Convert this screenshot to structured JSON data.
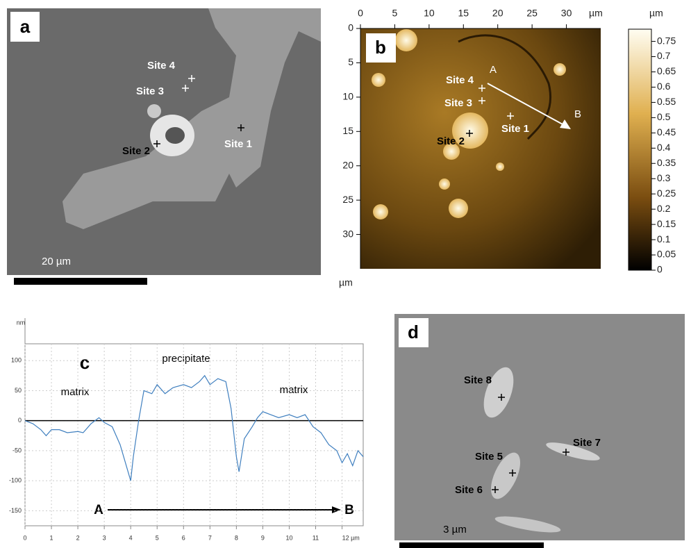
{
  "panels": {
    "a": {
      "label": "a",
      "sites": [
        "Site 4",
        "Site 3",
        "Site 2",
        "Site 1"
      ],
      "scale_bar": "20 µm"
    },
    "b": {
      "label": "b",
      "sites": [
        "Site 4",
        "Site 3",
        "Site 2",
        "Site 1"
      ],
      "profile_ends": [
        "A",
        "B"
      ],
      "xlim": [
        0,
        35
      ],
      "xticks": [
        0,
        5,
        10,
        15,
        20,
        25,
        30
      ],
      "x_unit": "µm",
      "ylim": [
        0,
        35
      ],
      "yticks": [
        0,
        5,
        10,
        15,
        20,
        25,
        30
      ],
      "y_unit": "µm",
      "colorbar": {
        "unit": "µm",
        "lim": [
          0,
          0.79
        ],
        "ticks": [
          0.75,
          0.7,
          0.65,
          0.6,
          0.55,
          0.5,
          0.45,
          0.4,
          0.35,
          0.3,
          0.25,
          0.2,
          0.15,
          0.1,
          0.05,
          0
        ]
      }
    },
    "d": {
      "label": "d",
      "sites": [
        "Site 8",
        "Site 7",
        "Site 5",
        "Site 6"
      ],
      "scale_bar": "3 µm"
    }
  },
  "chart_data": {
    "type": "line",
    "label": "c",
    "y_unit": "nm",
    "annotations": [
      "precipitate",
      "matrix",
      "matrix"
    ],
    "profile_ends": [
      "A",
      "B"
    ],
    "x": [
      0,
      0.3,
      0.6,
      0.8,
      1.0,
      1.3,
      1.6,
      2.0,
      2.2,
      2.5,
      2.8,
      3.0,
      3.3,
      3.6,
      3.8,
      4.0,
      4.1,
      4.3,
      4.5,
      4.8,
      5.0,
      5.3,
      5.6,
      6.0,
      6.3,
      6.6,
      6.8,
      7.0,
      7.3,
      7.6,
      7.8,
      8.0,
      8.1,
      8.3,
      8.6,
      8.8,
      9.0,
      9.3,
      9.6,
      10.0,
      10.3,
      10.6,
      10.9,
      11.2,
      11.5,
      11.8,
      12.0,
      12.2,
      12.4,
      12.6,
      12.8
    ],
    "series": [
      {
        "color": "#3f7fbf",
        "values": [
          0,
          -5,
          -15,
          -25,
          -15,
          -15,
          -20,
          -18,
          -20,
          -5,
          5,
          -3,
          -10,
          -40,
          -70,
          -100,
          -60,
          0,
          50,
          45,
          60,
          45,
          55,
          60,
          55,
          65,
          75,
          60,
          70,
          65,
          20,
          -60,
          -85,
          -30,
          -10,
          5,
          15,
          10,
          5,
          10,
          5,
          10,
          -10,
          -20,
          -40,
          -50,
          -70,
          -55,
          -75,
          -50,
          -60
        ]
      }
    ],
    "xlim": [
      0,
      12.8
    ],
    "xticks": [
      0,
      1,
      2,
      3,
      4,
      5,
      6,
      7,
      8,
      9,
      10,
      11,
      {
        "value": 12,
        "label": "12 µm"
      }
    ],
    "ylim": [
      -175,
      128
    ],
    "yticks": [
      100,
      50,
      0,
      -50,
      -100,
      -150
    ],
    "grid": true
  }
}
